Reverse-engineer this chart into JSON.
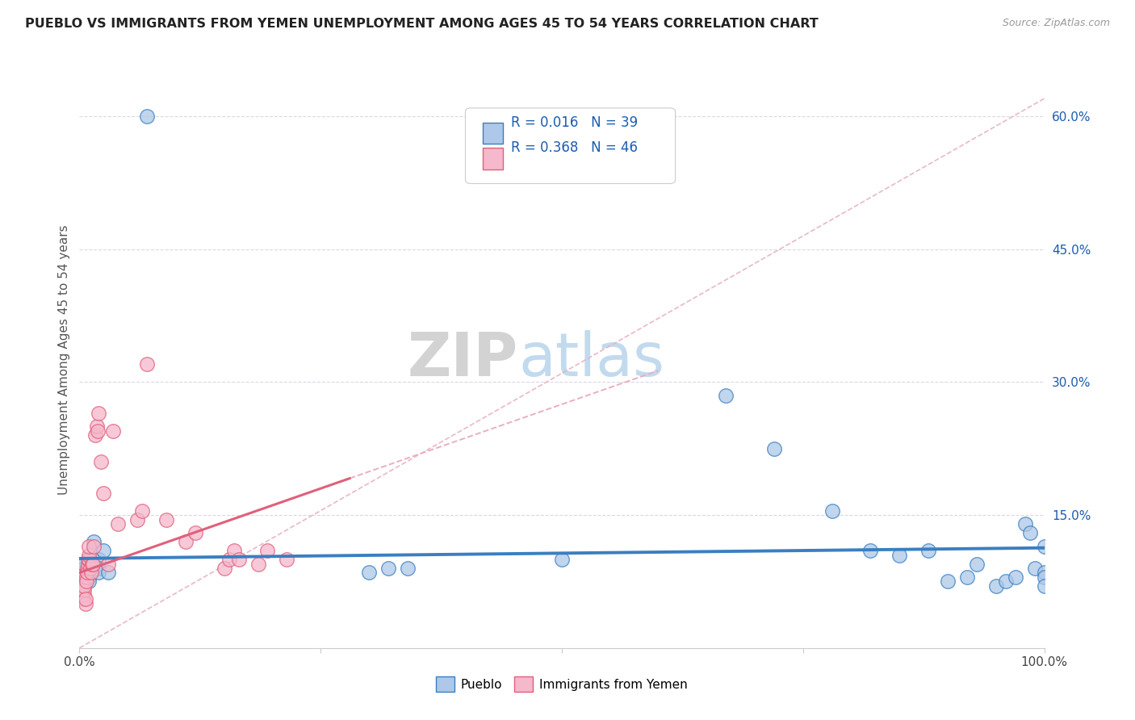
{
  "title": "PUEBLO VS IMMIGRANTS FROM YEMEN UNEMPLOYMENT AMONG AGES 45 TO 54 YEARS CORRELATION CHART",
  "source": "Source: ZipAtlas.com",
  "ylabel": "Unemployment Among Ages 45 to 54 years",
  "xlim": [
    0,
    1.0
  ],
  "ylim": [
    0,
    0.65
  ],
  "ytick_positions": [
    0.15,
    0.3,
    0.45,
    0.6
  ],
  "ytick_labels": [
    "15.0%",
    "30.0%",
    "45.0%",
    "60.0%"
  ],
  "pueblo_R": 0.016,
  "pueblo_N": 39,
  "yemen_R": 0.368,
  "yemen_N": 46,
  "pueblo_color": "#adc8e8",
  "yemen_color": "#f5b8cc",
  "pueblo_line_color": "#3a7fc1",
  "yemen_line_color": "#e0607a",
  "ref_line_color": "#e8b0c0",
  "background_color": "#ffffff",
  "legend_R_color": "#1a5cb0",
  "pueblo_scatter_x": [
    0.07,
    0.005,
    0.005,
    0.005,
    0.01,
    0.01,
    0.01,
    0.01,
    0.01,
    0.015,
    0.015,
    0.02,
    0.02,
    0.02,
    0.025,
    0.03,
    0.3,
    0.32,
    0.34,
    0.5,
    0.67,
    0.72,
    0.78,
    0.82,
    0.85,
    0.88,
    0.9,
    0.92,
    0.93,
    0.95,
    0.96,
    0.97,
    0.98,
    0.985,
    0.99,
    1.0,
    1.0,
    1.0,
    1.0
  ],
  "pueblo_scatter_y": [
    0.6,
    0.09,
    0.095,
    0.08,
    0.1,
    0.09,
    0.085,
    0.08,
    0.075,
    0.09,
    0.12,
    0.1,
    0.09,
    0.085,
    0.11,
    0.085,
    0.085,
    0.09,
    0.09,
    0.1,
    0.285,
    0.225,
    0.155,
    0.11,
    0.105,
    0.11,
    0.075,
    0.08,
    0.095,
    0.07,
    0.075,
    0.08,
    0.14,
    0.13,
    0.09,
    0.115,
    0.085,
    0.08,
    0.07
  ],
  "yemen_scatter_x": [
    0.002,
    0.003,
    0.003,
    0.004,
    0.004,
    0.005,
    0.005,
    0.005,
    0.006,
    0.006,
    0.007,
    0.007,
    0.008,
    0.008,
    0.009,
    0.009,
    0.01,
    0.01,
    0.01,
    0.011,
    0.012,
    0.013,
    0.014,
    0.015,
    0.016,
    0.018,
    0.019,
    0.02,
    0.022,
    0.025,
    0.03,
    0.035,
    0.04,
    0.06,
    0.065,
    0.07,
    0.09,
    0.11,
    0.12,
    0.15,
    0.155,
    0.16,
    0.165,
    0.185,
    0.195,
    0.215
  ],
  "yemen_scatter_y": [
    0.06,
    0.065,
    0.06,
    0.07,
    0.055,
    0.06,
    0.065,
    0.07,
    0.05,
    0.055,
    0.08,
    0.075,
    0.09,
    0.085,
    0.095,
    0.1,
    0.1,
    0.105,
    0.115,
    0.09,
    0.085,
    0.095,
    0.095,
    0.115,
    0.24,
    0.25,
    0.245,
    0.265,
    0.21,
    0.175,
    0.095,
    0.245,
    0.14,
    0.145,
    0.155,
    0.32,
    0.145,
    0.12,
    0.13,
    0.09,
    0.1,
    0.11,
    0.1,
    0.095,
    0.11,
    0.1
  ]
}
